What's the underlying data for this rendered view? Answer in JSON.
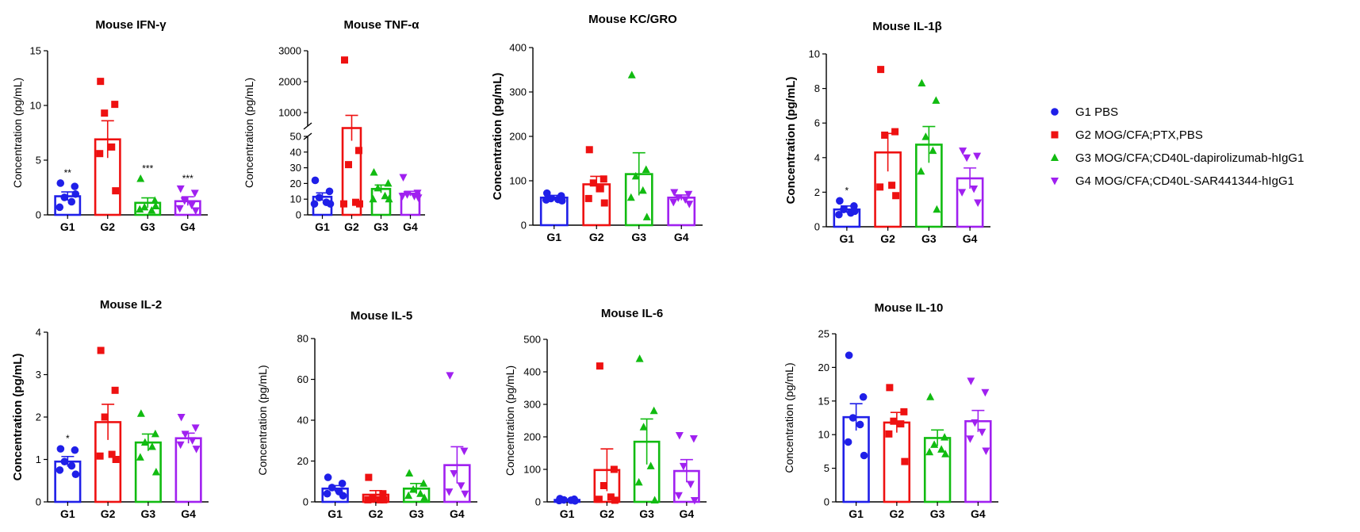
{
  "group_colors": [
    "#1f1fe8",
    "#ee1111",
    "#11bb11",
    "#a020f0"
  ],
  "legend": {
    "entries": [
      {
        "label": "G1 PBS",
        "marker": "circle",
        "color": "#1f1fe8"
      },
      {
        "label": "G2 MOG/CFA;PTX,PBS",
        "marker": "square",
        "color": "#ee1111"
      },
      {
        "label": "G3 MOG/CFA;CD40L-dapirolizumab-hIgG1",
        "marker": "triangle-up",
        "color": "#11bb11"
      },
      {
        "label": "G4 MOG/CFA;CD40L-SAR441344-hIgG1",
        "marker": "triangle-down",
        "color": "#a020f0"
      }
    ]
  },
  "chart_data": [
    {
      "type": "bar",
      "title": "Mouse IFN-γ",
      "ylabel": "Concentration (pg/mL)",
      "categories": [
        "G1",
        "G2",
        "G3",
        "G4"
      ],
      "ylim": [
        0,
        15
      ],
      "yticks": [
        0,
        5,
        10,
        15
      ],
      "means": [
        1.7,
        6.9,
        1.1,
        1.25
      ],
      "sem": [
        0.4,
        1.7,
        0.45,
        0.4
      ],
      "points": [
        [
          2.9,
          2.6,
          1.6,
          1.2,
          0.7,
          1.9
        ],
        [
          12.2,
          10.1,
          9.3,
          6.2,
          5.6,
          2.2
        ],
        [
          3.3,
          1.3,
          0.7,
          0.4,
          0.5,
          0.8
        ],
        [
          2.4,
          2.0,
          1.3,
          0.9,
          0.6,
          0.4
        ]
      ],
      "significance": [
        "**",
        "",
        "***",
        "***"
      ]
    },
    {
      "type": "bar",
      "title": "Mouse TNF-α",
      "ylabel": "Concentration (pg/mL)",
      "categories": [
        "G1",
        "G2",
        "G3",
        "G4"
      ],
      "axis_break": {
        "lower": [
          0,
          50
        ],
        "upper": [
          0,
          3000
        ]
      },
      "yticks_lower": [
        0,
        10,
        20,
        30,
        40,
        50
      ],
      "yticks_upper": [
        1000,
        2000,
        3000
      ],
      "means": [
        11.5,
        500,
        16.5,
        13.5
      ],
      "sem": [
        2.5,
        410,
        2.5,
        1.5
      ],
      "points": [
        [
          22,
          15,
          11,
          8,
          7,
          7
        ],
        [
          2700,
          41,
          32,
          8,
          7,
          7
        ],
        [
          27,
          20,
          17,
          12,
          10,
          10
        ],
        [
          24,
          14,
          13,
          12,
          12,
          11
        ]
      ],
      "significance": [
        "",
        "",
        "",
        ""
      ]
    },
    {
      "type": "bar",
      "title": "Mouse KC/GRO",
      "ylabel": "Concentration (pg/mL)",
      "categories": [
        "G1",
        "G2",
        "G3",
        "G4"
      ],
      "ylim": [
        0,
        400
      ],
      "yticks": [
        0,
        100,
        200,
        300,
        400
      ],
      "means": [
        62,
        92,
        115,
        62
      ],
      "sem": [
        5,
        18,
        48,
        6
      ],
      "points": [
        [
          72,
          66,
          60,
          58,
          57,
          55
        ],
        [
          170,
          104,
          95,
          82,
          60,
          50
        ],
        [
          338,
          125,
          110,
          78,
          62,
          18
        ],
        [
          74,
          70,
          62,
          58,
          52,
          48
        ]
      ],
      "significance": [
        "",
        "",
        "",
        ""
      ]
    },
    {
      "type": "bar",
      "title": "Mouse IL-1β",
      "ylabel": "Concentration (pg/mL)",
      "categories": [
        "G1",
        "G2",
        "G3",
        "G4"
      ],
      "ylim": [
        0,
        10
      ],
      "yticks": [
        0,
        2,
        4,
        6,
        8,
        10
      ],
      "means": [
        1.0,
        4.3,
        4.75,
        2.8
      ],
      "sem": [
        0.2,
        1.1,
        1.05,
        0.6
      ],
      "points": [
        [
          1.5,
          1.2,
          1.0,
          0.8,
          0.7,
          0.9
        ],
        [
          9.1,
          5.5,
          5.3,
          2.4,
          2.3,
          1.8
        ],
        [
          8.3,
          7.3,
          5.2,
          4.4,
          3.2,
          1.0
        ],
        [
          4.4,
          4.1,
          4.0,
          2.2,
          2.0,
          1.4
        ]
      ],
      "significance": [
        "*",
        "",
        "",
        ""
      ]
    },
    {
      "type": "bar",
      "title": "Mouse IL-2",
      "ylabel": "Concentration (pg/mL)",
      "categories": [
        "G1",
        "G2",
        "G3",
        "G4"
      ],
      "ylim": [
        0,
        4
      ],
      "yticks": [
        0,
        1,
        2,
        3,
        4
      ],
      "means": [
        0.95,
        1.88,
        1.4,
        1.5
      ],
      "sem": [
        0.12,
        0.42,
        0.2,
        0.12
      ],
      "points": [
        [
          1.25,
          1.22,
          0.95,
          0.85,
          0.75,
          0.65
        ],
        [
          3.57,
          2.63,
          2.0,
          1.12,
          1.08,
          1.0
        ],
        [
          2.08,
          1.6,
          1.4,
          1.3,
          1.05,
          0.7
        ],
        [
          2.0,
          1.75,
          1.6,
          1.45,
          1.35,
          1.25
        ]
      ],
      "significance": [
        "*",
        "",
        "",
        ""
      ]
    },
    {
      "type": "bar",
      "title": "Mouse IL-5",
      "ylabel": "Concentration (pg/mL)",
      "categories": [
        "G1",
        "G2",
        "G3",
        "G4"
      ],
      "ylim": [
        0,
        80
      ],
      "yticks": [
        0,
        20,
        40,
        60,
        80
      ],
      "means": [
        6.5,
        3.5,
        6.5,
        18
      ],
      "sem": [
        1.5,
        2.0,
        2.5,
        9
      ],
      "points": [
        [
          12,
          9,
          7,
          5,
          4,
          3
        ],
        [
          12,
          4,
          2,
          1,
          1,
          1
        ],
        [
          14,
          9,
          6,
          4,
          3,
          2
        ],
        [
          62,
          25,
          14,
          8,
          5,
          4
        ]
      ],
      "significance": [
        "",
        "",
        "",
        ""
      ]
    },
    {
      "type": "bar",
      "title": "Mouse IL-6",
      "ylabel": "Concentration (pg/mL)",
      "categories": [
        "G1",
        "G2",
        "G3",
        "G4"
      ],
      "ylim": [
        0,
        500
      ],
      "yticks": [
        0,
        100,
        200,
        300,
        400,
        500
      ],
      "means": [
        6,
        98,
        185,
        95
      ],
      "sem": [
        2,
        65,
        70,
        35
      ],
      "points": [
        [
          10,
          8,
          6,
          5,
          4,
          3
        ],
        [
          418,
          100,
          50,
          15,
          8,
          5
        ],
        [
          440,
          280,
          230,
          110,
          60,
          5
        ],
        [
          205,
          195,
          110,
          55,
          20,
          5
        ]
      ],
      "significance": [
        "",
        "",
        "",
        ""
      ]
    },
    {
      "type": "bar",
      "title": "Mouse IL-10",
      "ylabel": "Concentration (pg/mL)",
      "categories": [
        "G1",
        "G2",
        "G3",
        "G4"
      ],
      "ylim": [
        0,
        25
      ],
      "yticks": [
        0,
        5,
        10,
        15,
        20,
        25
      ],
      "means": [
        12.6,
        11.8,
        9.5,
        12.0
      ],
      "sem": [
        2.0,
        1.5,
        1.2,
        1.6
      ],
      "points": [
        [
          21.8,
          15.6,
          12.5,
          11.5,
          8.9,
          6.9
        ],
        [
          17.0,
          13.4,
          12.0,
          11.6,
          10.1,
          6.0
        ],
        [
          15.6,
          9.6,
          8.5,
          7.8,
          7.4,
          7.1
        ],
        [
          18.0,
          16.3,
          11.8,
          10.4,
          9.4,
          7.6
        ]
      ],
      "significance": [
        "",
        "",
        "",
        ""
      ]
    }
  ]
}
